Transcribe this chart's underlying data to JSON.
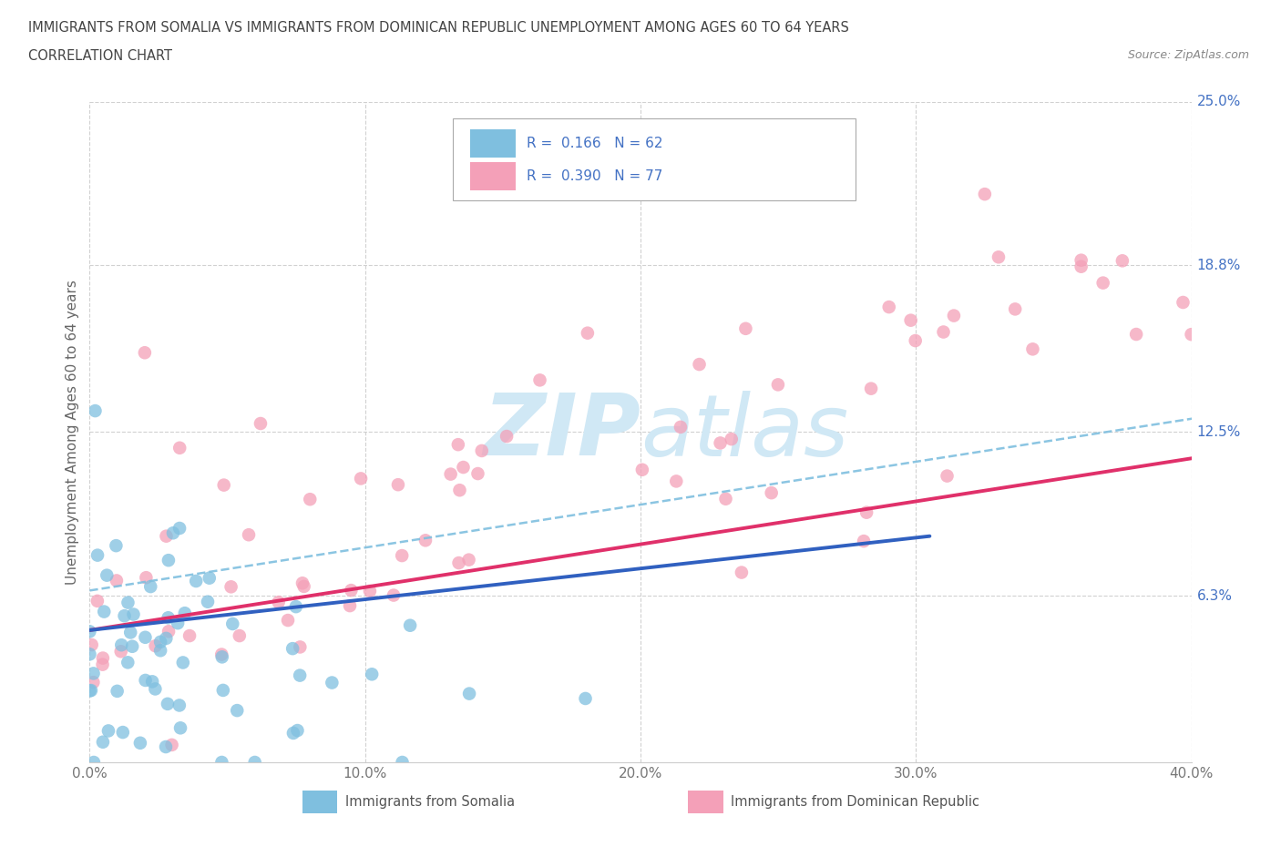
{
  "title_line1": "IMMIGRANTS FROM SOMALIA VS IMMIGRANTS FROM DOMINICAN REPUBLIC UNEMPLOYMENT AMONG AGES 60 TO 64 YEARS",
  "title_line2": "CORRELATION CHART",
  "source_text": "Source: ZipAtlas.com",
  "ylabel": "Unemployment Among Ages 60 to 64 years",
  "xlim": [
    0.0,
    0.4
  ],
  "ylim": [
    0.0,
    0.25
  ],
  "xtick_labels": [
    "0.0%",
    "10.0%",
    "20.0%",
    "30.0%",
    "40.0%"
  ],
  "xtick_values": [
    0.0,
    0.1,
    0.2,
    0.3,
    0.4
  ],
  "ytick_labels": [
    "6.3%",
    "12.5%",
    "18.8%",
    "25.0%"
  ],
  "ytick_values": [
    0.063,
    0.125,
    0.188,
    0.25
  ],
  "somalia_color": "#7fbfdf",
  "dominican_color": "#f4a0b8",
  "somalia_line_color": "#3060c0",
  "dominican_line_color": "#e0306a",
  "dashed_line_color": "#7fbfdf",
  "somalia_R": 0.166,
  "somalia_N": 62,
  "dominican_R": 0.39,
  "dominican_N": 77,
  "legend_label_1": "Immigrants from Somalia",
  "legend_label_2": "Immigrants from Dominican Republic",
  "background_color": "#ffffff",
  "grid_color": "#cccccc",
  "watermark_color": "#d0e8f5",
  "right_label_color": "#4472c4",
  "title_color": "#444444",
  "source_color": "#888888",
  "tick_color": "#777777"
}
